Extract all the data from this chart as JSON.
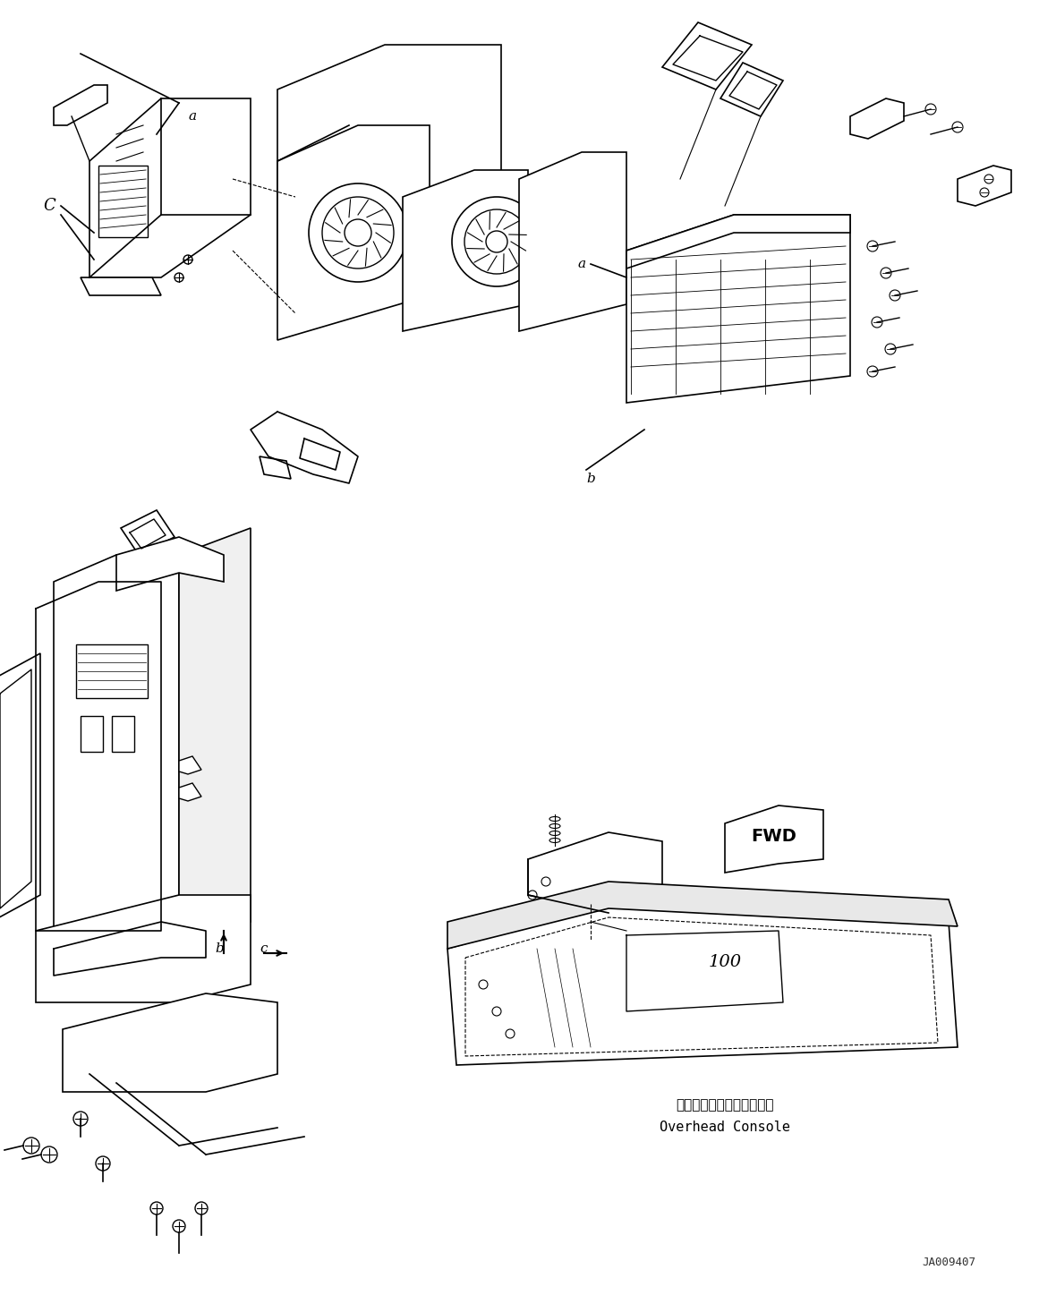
{
  "title": "",
  "background_color": "#ffffff",
  "line_color": "#000000",
  "fig_width": 11.61,
  "fig_height": 14.57,
  "dpi": 100,
  "watermark": "JA009407",
  "label_a1": "a",
  "label_b1": "b",
  "label_c1": "C",
  "label_a2": "a",
  "label_b2": "b",
  "label_c2": "c",
  "overhead_console_jp": "オーバーヘッドコンソール",
  "overhead_console_en": "Overhead Console",
  "fwd_label": "FWD"
}
